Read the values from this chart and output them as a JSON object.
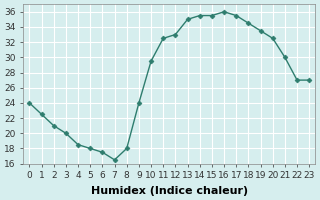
{
  "x": [
    0,
    1,
    2,
    3,
    4,
    5,
    6,
    7,
    8,
    9,
    10,
    11,
    12,
    13,
    14,
    15,
    16,
    17,
    18,
    19,
    20,
    21,
    22,
    23
  ],
  "y": [
    24,
    22.5,
    21,
    20,
    18.5,
    18,
    17.5,
    16.5,
    18,
    24,
    29.5,
    32.5,
    33,
    35,
    35.5,
    35.5,
    36,
    35.5,
    34.5,
    33.5,
    32.5,
    30,
    27,
    27
  ],
  "line_color": "#2e7d6e",
  "marker": "D",
  "marker_size": 2.5,
  "bg_color": "#d6eeee",
  "grid_color": "#ffffff",
  "xlabel": "Humidex (Indice chaleur)",
  "ylim": [
    16,
    37
  ],
  "xlim": [
    -0.5,
    23.5
  ],
  "yticks": [
    16,
    18,
    20,
    22,
    24,
    26,
    28,
    30,
    32,
    34,
    36
  ],
  "xticks": [
    0,
    1,
    2,
    3,
    4,
    5,
    6,
    7,
    8,
    9,
    10,
    11,
    12,
    13,
    14,
    15,
    16,
    17,
    18,
    19,
    20,
    21,
    22,
    23
  ],
  "xlabel_fontsize": 8,
  "tick_fontsize": 6.5
}
